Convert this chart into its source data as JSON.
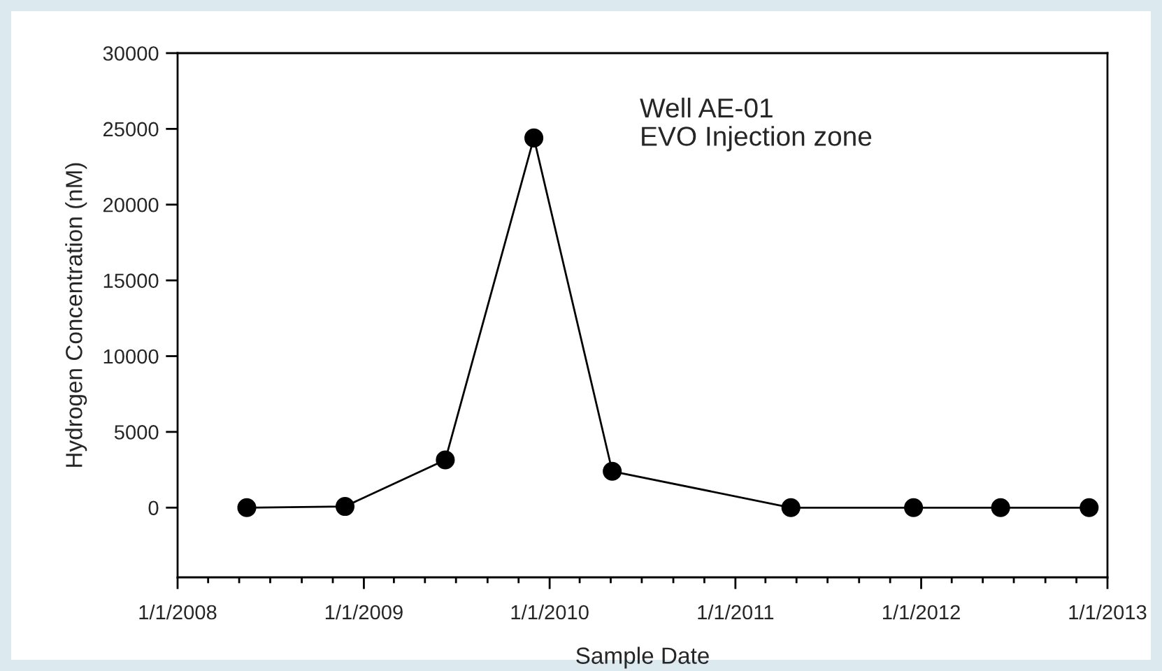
{
  "chart_data": {
    "type": "line",
    "xlabel": "Sample Date",
    "ylabel": "Hydrogen Concentration (nM)",
    "annotations": [
      "Well AE-01\nEVO Injection zone"
    ],
    "x": [
      "2008-05-16",
      "2008-11-25",
      "2009-06-10",
      "2009-12-01",
      "2010-05-04",
      "2011-04-20",
      "2011-12-17",
      "2012-06-05",
      "2012-11-26"
    ],
    "series": [
      {
        "color": "#000000",
        "values": [
          0,
          80,
          3150,
          24400,
          2400,
          0,
          0,
          0,
          0
        ]
      }
    ],
    "marker": "circle",
    "line_style": "solid",
    "grid": false,
    "legend": false,
    "ylim": [
      -4600,
      30000
    ],
    "yticks": [
      0,
      5000,
      10000,
      15000,
      20000,
      25000,
      30000
    ],
    "xlim": [
      "2008-01-01",
      "2013-01-01"
    ],
    "xticks": [
      {
        "value": "2008-01-01",
        "label": "1/1/2008"
      },
      {
        "value": "2008-03-01",
        "label": null
      },
      {
        "value": "2008-05-01",
        "label": null
      },
      {
        "value": "2008-07-01",
        "label": null
      },
      {
        "value": "2008-09-01",
        "label": null
      },
      {
        "value": "2008-11-01",
        "label": null
      },
      {
        "value": "2009-01-01",
        "label": "1/1/2009"
      },
      {
        "value": "2009-03-01",
        "label": null
      },
      {
        "value": "2009-05-01",
        "label": null
      },
      {
        "value": "2009-07-01",
        "label": null
      },
      {
        "value": "2009-09-01",
        "label": null
      },
      {
        "value": "2009-11-01",
        "label": null
      },
      {
        "value": "2010-01-01",
        "label": "1/1/2010"
      },
      {
        "value": "2010-03-01",
        "label": null
      },
      {
        "value": "2010-05-01",
        "label": null
      },
      {
        "value": "2010-07-01",
        "label": null
      },
      {
        "value": "2010-09-01",
        "label": null
      },
      {
        "value": "2010-11-01",
        "label": null
      },
      {
        "value": "2011-01-01",
        "label": "1/1/2011"
      },
      {
        "value": "2011-03-01",
        "label": null
      },
      {
        "value": "2011-05-01",
        "label": null
      },
      {
        "value": "2011-07-01",
        "label": null
      },
      {
        "value": "2011-09-01",
        "label": null
      },
      {
        "value": "2011-11-01",
        "label": null
      },
      {
        "value": "2012-01-01",
        "label": "1/1/2012"
      },
      {
        "value": "2012-03-01",
        "label": null
      },
      {
        "value": "2012-05-01",
        "label": null
      },
      {
        "value": "2012-07-01",
        "label": null
      },
      {
        "value": "2012-09-01",
        "label": null
      },
      {
        "value": "2012-11-01",
        "label": null
      },
      {
        "value": "2013-01-01",
        "label": "1/1/2013"
      }
    ]
  }
}
